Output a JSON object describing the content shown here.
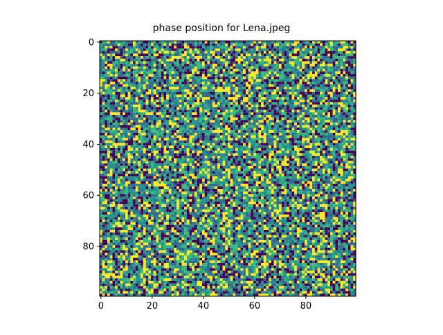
{
  "chart_data": {
    "type": "heatmap",
    "title": "phase position for Lena.jpeg",
    "xlabel": "",
    "ylabel": "",
    "grid": false,
    "colormap": "viridis",
    "colormap_colors": [
      "#440154",
      "#31688e",
      "#21918c",
      "#35b779",
      "#fde725"
    ],
    "rows": 100,
    "cols": 100,
    "xlim": [
      -0.5,
      99.5
    ],
    "ylim": [
      99.5,
      -0.5
    ],
    "x_ticks": [
      "0",
      "20",
      "40",
      "60",
      "80"
    ],
    "y_ticks": [
      "0",
      "20",
      "40",
      "60",
      "80"
    ],
    "value_range": [
      -3.14159,
      3.14159
    ],
    "values_description_note": null
  }
}
